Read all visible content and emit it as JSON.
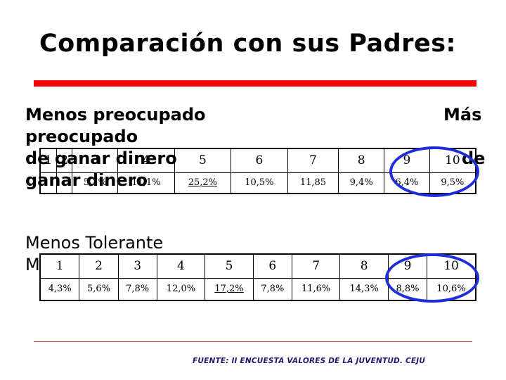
{
  "title": "Comparación con sus Padres:",
  "section1": {
    "label_line1": "Menos preocupado",
    "label_right": "Más",
    "label_line2": "preocupado",
    "label_line3": "de ganar dinero",
    "label_right3": "de",
    "label_line4": "ganar dinero",
    "headers": [
      "1",
      "2",
      "3",
      "4",
      "5",
      "6",
      "7",
      "8",
      "9",
      "10"
    ],
    "values": [
      "",
      "",
      "5,7%",
      "11,1%",
      "25,2%",
      "10,5%",
      "11,85",
      "9,4%",
      "6,4%",
      "9,5%"
    ]
  },
  "section2": {
    "label_line1": "Menos Tolerante",
    "label_line2": "M",
    "headers": [
      "1",
      "2",
      "3",
      "4",
      "5",
      "6",
      "7",
      "8",
      "9",
      "10"
    ],
    "values": [
      "4,3%",
      "5,6%",
      "7,8%",
      "12,0%",
      "17,2%",
      "7,8%",
      "11,6%",
      "14,3%",
      "8,8%",
      "10,6%"
    ]
  },
  "source": "FUENTE: II  ENCUESTA VALORES DE LA JUVENTUD. CEJU",
  "colors": {
    "accent_rule": "#ff0000",
    "highlight_oval": "#1f2fd8",
    "source_text": "#1a1a6e"
  }
}
